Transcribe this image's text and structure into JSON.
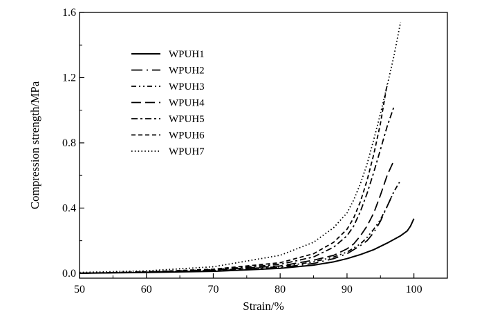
{
  "chart_data": {
    "type": "line",
    "title": "",
    "xlabel": "Strain/%",
    "ylabel": "Compression strength/MPa",
    "xlim": [
      50,
      105
    ],
    "ylim": [
      -0.03,
      1.6
    ],
    "xticks": [
      "50",
      "60",
      "70",
      "80",
      "90",
      "100"
    ],
    "yticks": [
      "0.0",
      "0.4",
      "0.8",
      "1.2",
      "1.6"
    ],
    "grid": false,
    "legend": "upper-left",
    "series": [
      {
        "name": "WPUH1",
        "dash": "solid",
        "x": [
          50,
          60,
          70,
          80,
          85,
          88,
          90,
          92,
          94,
          96,
          98,
          99,
          99.5,
          100
        ],
        "y": [
          0.0,
          0.005,
          0.012,
          0.03,
          0.05,
          0.07,
          0.09,
          0.115,
          0.145,
          0.185,
          0.23,
          0.26,
          0.29,
          0.335
        ]
      },
      {
        "name": "WPUH2",
        "dash": "long-dash-dot",
        "x": [
          50,
          60,
          70,
          80,
          85,
          88,
          90,
          92,
          93,
          94,
          95,
          96,
          97
        ],
        "y": [
          0.0,
          0.006,
          0.015,
          0.035,
          0.06,
          0.09,
          0.12,
          0.17,
          0.2,
          0.25,
          0.32,
          0.41,
          0.5
        ]
      },
      {
        "name": "WPUH3",
        "dash": "dash-dot-dot",
        "x": [
          50,
          60,
          70,
          80,
          85,
          88,
          90,
          92,
          93,
          94,
          95,
          96,
          97,
          98
        ],
        "y": [
          0.0,
          0.007,
          0.018,
          0.04,
          0.07,
          0.1,
          0.13,
          0.18,
          0.22,
          0.27,
          0.33,
          0.41,
          0.5,
          0.57
        ]
      },
      {
        "name": "WPUH4",
        "dash": "long-dash",
        "x": [
          50,
          60,
          70,
          80,
          85,
          88,
          90,
          91,
          92,
          93,
          94,
          95,
          96,
          97
        ],
        "y": [
          0.0,
          0.007,
          0.02,
          0.045,
          0.08,
          0.11,
          0.15,
          0.18,
          0.23,
          0.29,
          0.37,
          0.48,
          0.6,
          0.69
        ]
      },
      {
        "name": "WPUH5",
        "dash": "dash-dot",
        "x": [
          50,
          60,
          70,
          80,
          85,
          88,
          90,
          91,
          92,
          93,
          94,
          95,
          96,
          97
        ],
        "y": [
          0.0,
          0.008,
          0.022,
          0.055,
          0.1,
          0.16,
          0.23,
          0.29,
          0.38,
          0.49,
          0.62,
          0.76,
          0.9,
          1.02
        ]
      },
      {
        "name": "WPUH6",
        "dash": "short-dash",
        "x": [
          50,
          60,
          70,
          80,
          85,
          88,
          90,
          91,
          92,
          93,
          94,
          95,
          96
        ],
        "y": [
          0.0,
          0.009,
          0.025,
          0.065,
          0.12,
          0.19,
          0.27,
          0.34,
          0.44,
          0.57,
          0.73,
          0.92,
          1.16
        ]
      },
      {
        "name": "WPUH7",
        "dash": "dotted",
        "x": [
          50,
          60,
          70,
          80,
          85,
          88,
          90,
          91,
          92,
          93,
          94,
          95,
          96,
          97,
          98
        ],
        "y": [
          0.005,
          0.015,
          0.04,
          0.11,
          0.19,
          0.28,
          0.37,
          0.45,
          0.55,
          0.67,
          0.82,
          0.98,
          1.15,
          1.33,
          1.54
        ]
      }
    ]
  }
}
